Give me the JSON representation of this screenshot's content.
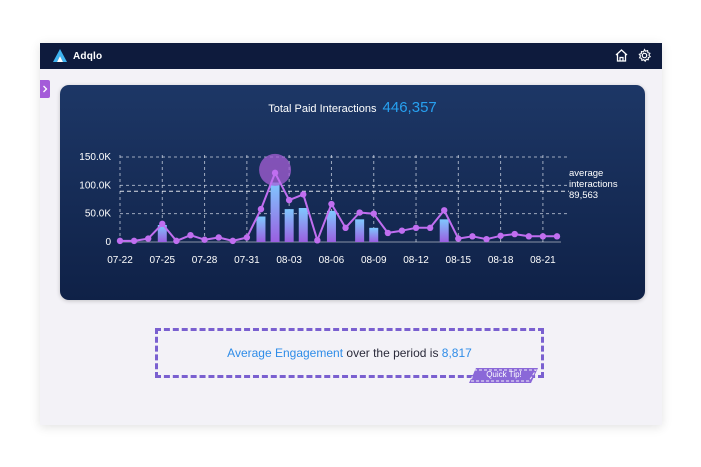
{
  "app": {
    "name": "Adqlo"
  },
  "header_icons": [
    "home-icon",
    "gear-icon"
  ],
  "panel": {
    "title_label": "Total Paid Interactions",
    "title_value": "446,357"
  },
  "chart_data": {
    "type": "bar+line",
    "title": "Total Paid Interactions 446,357",
    "x_ticks": [
      "07-22",
      "07-25",
      "07-28",
      "07-31",
      "08-03",
      "08-06",
      "08-09",
      "08-12",
      "08-15",
      "08-18",
      "08-21"
    ],
    "y_ticks": [
      "0",
      "50.0K",
      "100.0K",
      "150.0K"
    ],
    "ylim": [
      0,
      150000
    ],
    "dates": [
      "07-22",
      "07-23",
      "07-24",
      "07-25",
      "07-26",
      "07-27",
      "07-28",
      "07-29",
      "07-30",
      "07-31",
      "08-01",
      "08-02",
      "08-03",
      "08-04",
      "08-05",
      "08-06",
      "08-07",
      "08-08",
      "08-09",
      "08-10",
      "08-11",
      "08-12",
      "08-13",
      "08-14",
      "08-15",
      "08-16",
      "08-17",
      "08-18",
      "08-19",
      "08-20",
      "08-21",
      "08-22"
    ],
    "series": [
      {
        "kind": "line",
        "values": [
          2000,
          2000,
          6000,
          32000,
          2000,
          12000,
          4000,
          8000,
          2000,
          8000,
          58000,
          122000,
          74000,
          84000,
          3000,
          67000,
          25000,
          52000,
          50000,
          16000,
          20000,
          25000,
          25000,
          56000,
          6000,
          10000,
          5000,
          11000,
          14000,
          10000,
          10000,
          10000
        ]
      },
      {
        "kind": "bar",
        "values": [
          0,
          0,
          0,
          30000,
          0,
          0,
          0,
          0,
          0,
          0,
          45000,
          105000,
          58000,
          60000,
          0,
          55000,
          0,
          40000,
          25000,
          0,
          0,
          0,
          0,
          40000,
          0,
          0,
          0,
          0,
          0,
          0,
          0,
          0
        ]
      }
    ],
    "average_line": {
      "value": 89563,
      "label_lines": [
        "average",
        "interactions",
        "89,563"
      ]
    },
    "grid": true,
    "colors": {
      "line": "#c06ef0",
      "bar_top": "#7fc8ff",
      "bar_bottom": "#9a5fe0",
      "grid": "#d8deea",
      "highlight": "#a55fd6"
    }
  },
  "insight": {
    "label": "Average Engagement",
    "middle": "over the period is",
    "value": "8,817"
  },
  "quick_tip": {
    "label": "Quick Tip!"
  }
}
